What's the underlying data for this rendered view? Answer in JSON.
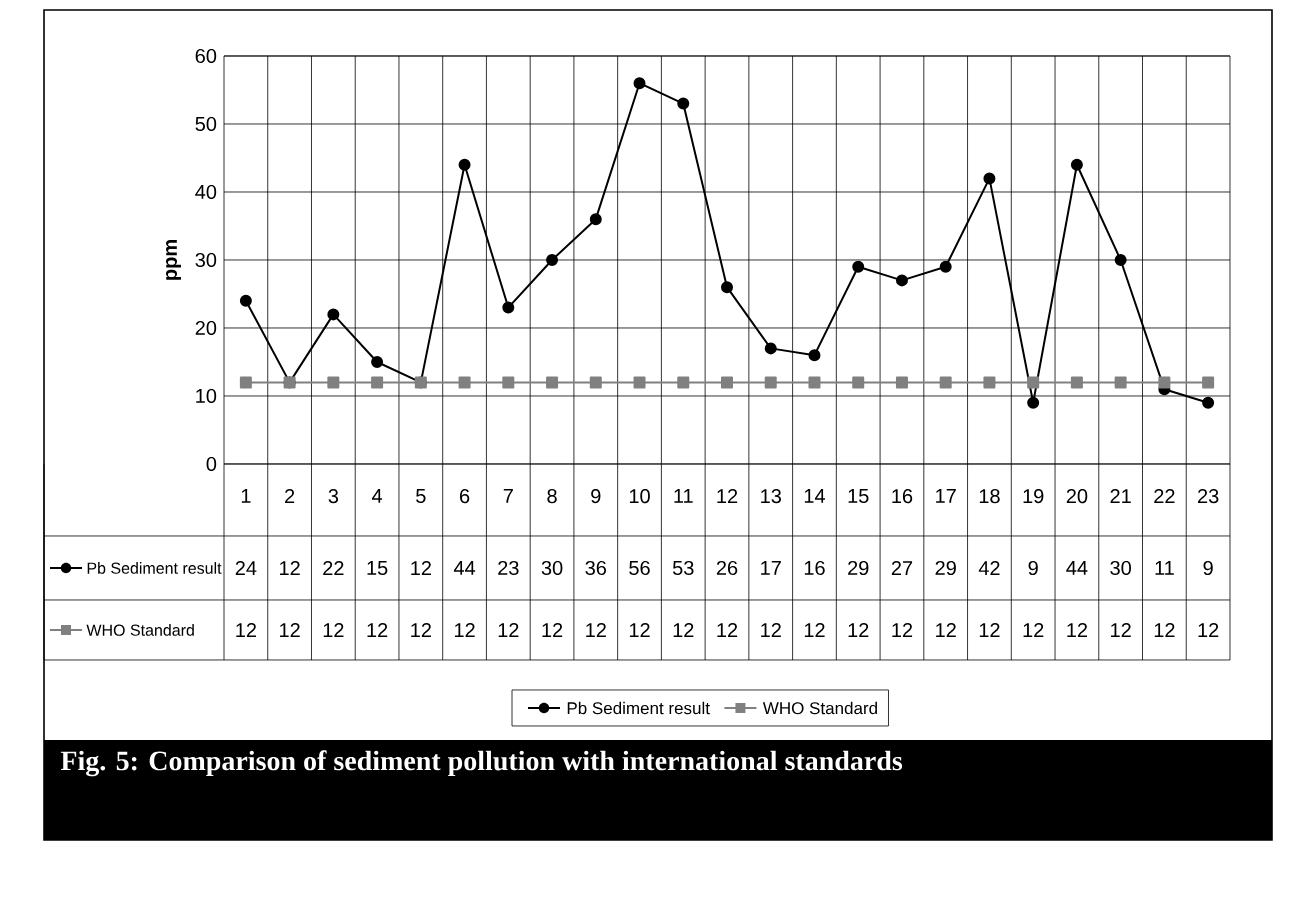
{
  "chart_data": {
    "type": "line",
    "ylabel": "ppm",
    "categories": [
      "1",
      "2",
      "3",
      "4",
      "5",
      "6",
      "7",
      "8",
      "9",
      "10",
      "11",
      "12",
      "13",
      "14",
      "15",
      "16",
      "17",
      "18",
      "19",
      "20",
      "21",
      "22",
      "23"
    ],
    "series": [
      {
        "name": "Pb Sediment result",
        "color": "#000000",
        "marker": "circle",
        "values": [
          24,
          12,
          22,
          15,
          12,
          44,
          23,
          30,
          36,
          56,
          53,
          26,
          17,
          16,
          29,
          27,
          29,
          42,
          9,
          44,
          30,
          11,
          9
        ]
      },
      {
        "name": "WHO Standard",
        "color": "#808080",
        "marker": "square",
        "values": [
          12,
          12,
          12,
          12,
          12,
          12,
          12,
          12,
          12,
          12,
          12,
          12,
          12,
          12,
          12,
          12,
          12,
          12,
          12,
          12,
          12,
          12,
          12
        ]
      }
    ],
    "ylim": [
      0,
      60
    ],
    "yticks": [
      0,
      10,
      20,
      30,
      40,
      50,
      60
    ],
    "grid": true,
    "legend": "bottom",
    "data_labels": true,
    "annotations": [
      "Fig. 5: Comparison of sediment pollution with international standards"
    ]
  }
}
